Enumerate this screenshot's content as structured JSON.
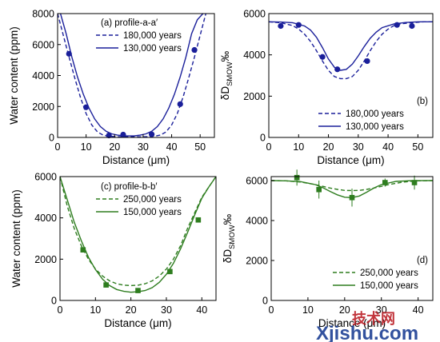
{
  "colors": {
    "blue": "#1a1f9a",
    "green": "#2e7d1f",
    "watermark_red": "#b8141c",
    "watermark_blue": "#1c3f94"
  },
  "watermark": {
    "cn": "技术网",
    "latin": "Xjishu.com"
  },
  "chart_data": [
    {
      "type": "line",
      "panel": "a",
      "legend_title": "(a) profile-a-a′",
      "legend_position": "top-right",
      "xlabel": "Distance (μm)",
      "ylabel": "Water content (ppm)",
      "xlim": [
        0,
        55
      ],
      "ylim": [
        0,
        8000
      ],
      "xticks": [
        0,
        10,
        20,
        30,
        40,
        50
      ],
      "yticks": [
        0,
        2000,
        4000,
        6000,
        8000
      ],
      "points": {
        "x": [
          4,
          10,
          18,
          23,
          33,
          43,
          48
        ],
        "y": [
          5400,
          1950,
          130,
          180,
          200,
          2150,
          5650
        ]
      },
      "series": [
        {
          "name": "180,000 years",
          "style": "dashed",
          "x": [
            0,
            2,
            4,
            6,
            8,
            10,
            12,
            14,
            16,
            18,
            20,
            22,
            24,
            26,
            28,
            30,
            32,
            34,
            36,
            38,
            40,
            42,
            44,
            46,
            48,
            50,
            52
          ],
          "y": [
            8000,
            6600,
            5200,
            3850,
            2600,
            1550,
            800,
            350,
            150,
            80,
            50,
            40,
            40,
            40,
            40,
            40,
            50,
            80,
            150,
            350,
            800,
            1550,
            2600,
            3850,
            5200,
            6600,
            8000
          ]
        },
        {
          "name": "130,000 years",
          "style": "solid",
          "x": [
            1,
            3,
            5,
            7,
            9,
            11,
            13,
            15,
            17,
            19,
            21,
            23,
            25,
            27,
            29,
            31,
            33,
            35,
            37,
            39,
            41,
            43,
            45,
            47,
            49,
            51
          ],
          "y": [
            8000,
            6700,
            5200,
            3900,
            2800,
            1900,
            1200,
            700,
            400,
            230,
            150,
            110,
            100,
            110,
            150,
            230,
            400,
            700,
            1200,
            1900,
            2800,
            3900,
            5200,
            6700,
            7600,
            8000
          ]
        }
      ]
    },
    {
      "type": "line",
      "panel": "b",
      "legend_title": "(b)",
      "legend_position": "bottom-right",
      "xlabel": "Distance (μm)",
      "ylabel": "δD",
      "ylabel_sub": "SMOW",
      "ylabel_unit": "‰",
      "xlim": [
        0,
        55
      ],
      "ylim": [
        0,
        6000
      ],
      "xticks": [
        0,
        10,
        20,
        30,
        40,
        50
      ],
      "yticks": [
        0,
        2000,
        4000,
        6000
      ],
      "points": {
        "x": [
          4,
          10,
          18,
          23,
          33,
          43,
          48
        ],
        "y": [
          5400,
          5450,
          3900,
          3300,
          3700,
          5450,
          5400
        ]
      },
      "series": [
        {
          "name": "180,000 years",
          "style": "dashed",
          "x": [
            0,
            4,
            8,
            10,
            12,
            14,
            16,
            18,
            20,
            22,
            24,
            26,
            28,
            30,
            32,
            34,
            36,
            38,
            40,
            42,
            44,
            48,
            52,
            55
          ],
          "y": [
            5600,
            5560,
            5420,
            5250,
            5000,
            4650,
            4200,
            3700,
            3250,
            2950,
            2850,
            2850,
            2950,
            3250,
            3700,
            4200,
            4650,
            5000,
            5250,
            5420,
            5500,
            5560,
            5600,
            5600
          ]
        },
        {
          "name": "130,000 years",
          "style": "solid",
          "x": [
            0,
            4,
            8,
            12,
            14,
            16,
            18,
            20,
            22,
            24,
            26,
            28,
            30,
            32,
            34,
            36,
            38,
            42,
            46,
            50,
            55
          ],
          "y": [
            5600,
            5590,
            5560,
            5400,
            5200,
            4850,
            4350,
            3800,
            3400,
            3250,
            3300,
            3550,
            3950,
            4400,
            4800,
            5100,
            5320,
            5500,
            5570,
            5600,
            5600
          ]
        }
      ]
    },
    {
      "type": "line",
      "panel": "c",
      "legend_title": "(c) profile-b-b′",
      "legend_position": "top-left",
      "xlabel": "Distance (μm)",
      "ylabel": "Water content (ppm)",
      "xlim": [
        0,
        44
      ],
      "ylim": [
        0,
        6000
      ],
      "xticks": [
        0,
        10,
        20,
        30,
        40
      ],
      "yticks": [
        0,
        2000,
        4000,
        6000
      ],
      "points": {
        "x": [
          6.5,
          13,
          22,
          31,
          39
        ],
        "y": [
          2450,
          750,
          480,
          1400,
          3900
        ]
      },
      "series": [
        {
          "name": "250,000 years",
          "style": "dashed",
          "x": [
            0,
            2,
            4,
            6,
            8,
            10,
            12,
            14,
            16,
            18,
            20,
            22,
            24,
            26,
            28,
            30,
            32,
            34,
            36,
            38,
            40,
            42,
            44
          ],
          "y": [
            6000,
            4600,
            3500,
            2650,
            2000,
            1520,
            1180,
            950,
            810,
            740,
            720,
            740,
            810,
            950,
            1180,
            1520,
            2000,
            2650,
            3500,
            4250,
            5000,
            5500,
            6000
          ]
        },
        {
          "name": "150,000 years",
          "style": "solid",
          "x": [
            0,
            2,
            4,
            6,
            8,
            10,
            12,
            14,
            16,
            18,
            20,
            22,
            24,
            26,
            28,
            30,
            32,
            34,
            36,
            38,
            40,
            42,
            44
          ],
          "y": [
            6000,
            4900,
            3800,
            2900,
            2100,
            1500,
            1030,
            720,
            530,
            440,
            400,
            420,
            480,
            620,
            880,
            1270,
            1800,
            2500,
            3300,
            4150,
            4950,
            5500,
            6000
          ]
        }
      ]
    },
    {
      "type": "line",
      "panel": "d",
      "legend_title": "(d)",
      "legend_position": "bottom-right",
      "xlabel": "Distance (μm)",
      "ylabel": "δD",
      "ylabel_sub": "SMOW",
      "ylabel_unit": "‰",
      "xlim": [
        0,
        44
      ],
      "ylim": [
        0,
        6200
      ],
      "xticks": [
        0,
        10,
        20,
        30,
        40
      ],
      "yticks": [
        0,
        2000,
        4000,
        6000
      ],
      "points": {
        "x": [
          7,
          13,
          22,
          31,
          39
        ],
        "y": [
          6150,
          5550,
          5150,
          5900,
          5900
        ],
        "yerr": [
          400,
          450,
          450,
          200,
          350
        ]
      },
      "series": [
        {
          "name": "250,000 years",
          "style": "dashed",
          "x": [
            0,
            4,
            8,
            12,
            16,
            18,
            20,
            22,
            24,
            26,
            28,
            32,
            36,
            40,
            44
          ],
          "y": [
            6000,
            5990,
            5930,
            5800,
            5630,
            5560,
            5510,
            5500,
            5510,
            5560,
            5630,
            5800,
            5930,
            5990,
            6000
          ]
        },
        {
          "name": "150,000 years",
          "style": "solid",
          "x": [
            0,
            4,
            8,
            12,
            14,
            16,
            18,
            20,
            22,
            24,
            26,
            28,
            30,
            34,
            38,
            44
          ],
          "y": [
            6000,
            5990,
            5950,
            5800,
            5650,
            5460,
            5290,
            5170,
            5150,
            5230,
            5420,
            5630,
            5800,
            5960,
            5995,
            6000
          ]
        }
      ]
    }
  ]
}
